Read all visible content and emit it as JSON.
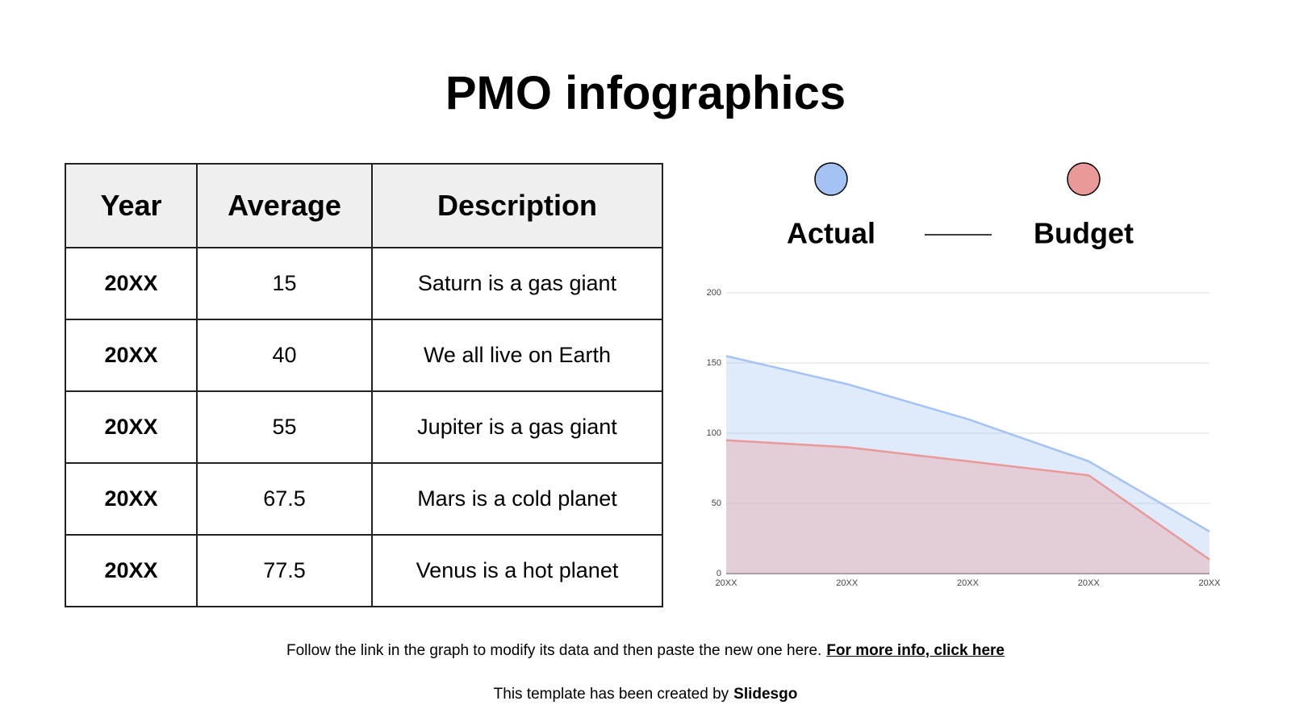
{
  "header": {
    "title": "PMO infographics"
  },
  "table": {
    "header": [
      "Year",
      "Average",
      "Description"
    ],
    "rows": [
      [
        "20XX",
        15,
        "Saturn is a gas giant"
      ],
      [
        "20XX",
        40,
        "We all live on Earth"
      ],
      [
        "20XX",
        55,
        "Jupiter is a gas giant"
      ],
      [
        "20XX",
        67.5,
        "Mars is a cold planet"
      ],
      [
        "20XX",
        77.5,
        "Venus is a hot planet"
      ]
    ]
  },
  "chart_data": {
    "type": "area",
    "categories": [
      "20XX",
      "20XX",
      "20XX",
      "20XX",
      "20XX"
    ],
    "series": [
      {
        "name": "Actual",
        "color": "#a4c2f4",
        "values": [
          155,
          135,
          110,
          80,
          30
        ]
      },
      {
        "name": "Budget",
        "color": "#ea9999",
        "values": [
          95,
          90,
          80,
          70,
          10
        ]
      }
    ],
    "ylim": [
      0,
      200
    ],
    "yticks": [
      0,
      50,
      100,
      150,
      200
    ],
    "grid": true
  },
  "footer": {
    "note": "Follow the link in the graph to modify its data and then paste the new one here.",
    "link": "For more info, click here",
    "credit": "This template has been created by",
    "brand": "Slidesgo"
  }
}
